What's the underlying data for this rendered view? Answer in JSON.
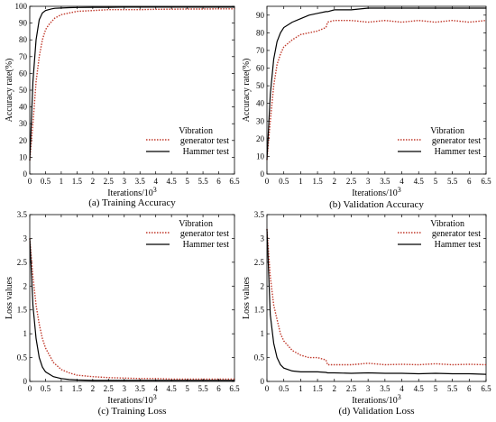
{
  "chart_data": [
    {
      "type": "line",
      "caption": "(a) Training Accuracy",
      "xlabel": "Iterations/10",
      "xlabel_sup": "3",
      "ylabel": "Accuracy rate(%)",
      "xlim": [
        0,
        6.5
      ],
      "ylim": [
        0,
        100
      ],
      "xticks": [
        "0",
        "0.5",
        "1",
        "1.5",
        "2",
        "2.5",
        "3",
        "3.5",
        "4",
        "4.5",
        "5",
        "5.5",
        "6",
        "6.5"
      ],
      "yticks": [
        "0",
        "10",
        "20",
        "30",
        "40",
        "50",
        "60",
        "70",
        "80",
        "90",
        "100"
      ],
      "legend_position": "bottom-right",
      "x": [
        0,
        0.1,
        0.2,
        0.3,
        0.4,
        0.5,
        0.6,
        0.7,
        0.8,
        1.0,
        1.25,
        1.5,
        2.0,
        2.5,
        3.0,
        3.5,
        4.0,
        4.5,
        5.0,
        5.5,
        6.0,
        6.5
      ],
      "series": [
        {
          "name": "Vibration generator test",
          "style": "dotted",
          "color": "#c0392b",
          "values": [
            8,
            30,
            55,
            70,
            80,
            86,
            89,
            91,
            93,
            95,
            96,
            97,
            97.5,
            98,
            98,
            98,
            98.2,
            98.3,
            98.4,
            98.4,
            98.5,
            98.5
          ]
        },
        {
          "name": "Hammer test",
          "style": "solid",
          "color": "#000000",
          "values": [
            8,
            55,
            80,
            92,
            96,
            97.5,
            98,
            98.5,
            98.8,
            99,
            99.2,
            99.3,
            99.4,
            99.4,
            99.5,
            99.5,
            99.5,
            99.5,
            99.5,
            99.5,
            99.5,
            99.5
          ]
        }
      ]
    },
    {
      "type": "line",
      "caption": "(b) Validation Accuracy",
      "xlabel": "Iterations/10",
      "xlabel_sup": "3",
      "ylabel": "Accuracy rate(%)",
      "xlim": [
        0,
        6.5
      ],
      "ylim": [
        0,
        95
      ],
      "xticks": [
        "0",
        "0.5",
        "1",
        "1.5",
        "2",
        "2.5",
        "3",
        "3.5",
        "4",
        "4.5",
        "5",
        "5.5",
        "6",
        "6.5"
      ],
      "yticks": [
        "0",
        "10",
        "20",
        "30",
        "40",
        "50",
        "60",
        "70",
        "80",
        "90"
      ],
      "legend_position": "bottom-right",
      "x": [
        0,
        0.1,
        0.2,
        0.3,
        0.4,
        0.5,
        0.75,
        1.0,
        1.25,
        1.5,
        1.75,
        1.8,
        2.0,
        2.5,
        3.0,
        3.5,
        4.0,
        4.5,
        5.0,
        5.5,
        6.0,
        6.5
      ],
      "series": [
        {
          "name": "Vibration generator test",
          "style": "dotted",
          "color": "#c0392b",
          "values": [
            8,
            30,
            50,
            62,
            68,
            72,
            76,
            79,
            80,
            81,
            83,
            86,
            87,
            87,
            86,
            87,
            86,
            87,
            86,
            87,
            86,
            87
          ]
        },
        {
          "name": "Hammer test",
          "style": "solid",
          "color": "#000000",
          "values": [
            8,
            45,
            65,
            75,
            80,
            83,
            86,
            88,
            90,
            91,
            92,
            92,
            93,
            93,
            94,
            94,
            94,
            94,
            94,
            94,
            94,
            94
          ]
        }
      ]
    },
    {
      "type": "line",
      "caption": "(c) Training Loss",
      "xlabel": "Iterations/10",
      "xlabel_sup": "3",
      "ylabel": "Loss values",
      "xlim": [
        0,
        6.5
      ],
      "ylim": [
        0,
        3.5
      ],
      "xticks": [
        "0",
        "0.5",
        "1",
        "1.5",
        "2",
        "2.5",
        "3",
        "3.5",
        "4",
        "4.5",
        "5",
        "5.5",
        "6",
        "6.5"
      ],
      "yticks": [
        "0",
        "0.5",
        "1",
        "1.5",
        "2",
        "2.5",
        "3",
        "3.5"
      ],
      "legend_position": "top-right",
      "x": [
        0,
        0.1,
        0.2,
        0.3,
        0.4,
        0.5,
        0.75,
        1.0,
        1.25,
        1.5,
        2.0,
        2.5,
        3.0,
        3.5,
        4.0,
        4.5,
        5.0,
        5.5,
        6.0,
        6.5
      ],
      "series": [
        {
          "name": "Vibration generator test",
          "style": "dotted",
          "color": "#c0392b",
          "values": [
            3.0,
            2.2,
            1.6,
            1.2,
            0.9,
            0.7,
            0.4,
            0.25,
            0.18,
            0.13,
            0.1,
            0.08,
            0.07,
            0.06,
            0.06,
            0.05,
            0.05,
            0.05,
            0.05,
            0.05
          ]
        },
        {
          "name": "Hammer test",
          "style": "solid",
          "color": "#000000",
          "values": [
            3.0,
            1.6,
            0.9,
            0.5,
            0.3,
            0.2,
            0.1,
            0.06,
            0.04,
            0.03,
            0.02,
            0.02,
            0.02,
            0.02,
            0.02,
            0.02,
            0.02,
            0.02,
            0.02,
            0.02
          ]
        }
      ]
    },
    {
      "type": "line",
      "caption": "(d) Validation Loss",
      "xlabel": "Iterations/10",
      "xlabel_sup": "3",
      "ylabel": "Loss values",
      "xlim": [
        0,
        6.5
      ],
      "ylim": [
        0,
        3.5
      ],
      "xticks": [
        "0",
        "0.5",
        "1",
        "1.5",
        "2",
        "2.5",
        "3",
        "3.5",
        "4",
        "4.5",
        "5",
        "5.5",
        "6",
        "6.5"
      ],
      "yticks": [
        "0",
        "0.5",
        "1",
        "1.5",
        "2",
        "2.5",
        "3",
        "3.5"
      ],
      "legend_position": "top-right",
      "x": [
        0,
        0.1,
        0.2,
        0.3,
        0.4,
        0.5,
        0.75,
        1.0,
        1.25,
        1.5,
        1.75,
        1.8,
        2.0,
        2.5,
        3.0,
        3.5,
        4.0,
        4.5,
        5.0,
        5.5,
        6.0,
        6.5
      ],
      "series": [
        {
          "name": "Vibration generator test",
          "style": "dotted",
          "color": "#c0392b",
          "values": [
            3.2,
            2.2,
            1.6,
            1.3,
            1.0,
            0.85,
            0.65,
            0.55,
            0.5,
            0.5,
            0.45,
            0.35,
            0.35,
            0.35,
            0.38,
            0.35,
            0.36,
            0.35,
            0.37,
            0.35,
            0.36,
            0.35
          ]
        },
        {
          "name": "Hammer test",
          "style": "solid",
          "color": "#000000",
          "values": [
            3.2,
            1.4,
            0.8,
            0.5,
            0.35,
            0.28,
            0.22,
            0.2,
            0.2,
            0.2,
            0.19,
            0.18,
            0.18,
            0.17,
            0.18,
            0.17,
            0.17,
            0.16,
            0.17,
            0.16,
            0.16,
            0.15
          ]
        }
      ]
    }
  ]
}
